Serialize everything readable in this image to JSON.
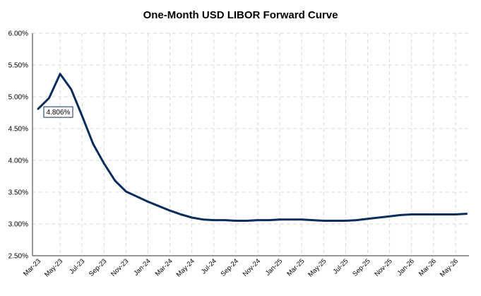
{
  "chart_data": {
    "type": "line",
    "title": "One-Month USD LIBOR Forward Curve",
    "xlabel": "",
    "ylabel": "",
    "ylim": [
      0.025,
      0.06
    ],
    "y_ticks": [
      "2.50%",
      "3.00%",
      "3.50%",
      "4.00%",
      "4.50%",
      "5.00%",
      "5.50%",
      "6.00%"
    ],
    "y_tick_values": [
      0.025,
      0.03,
      0.035,
      0.04,
      0.045,
      0.05,
      0.055,
      0.06
    ],
    "x_tick_labels": [
      "Mar-23",
      "May-23",
      "Jul-23",
      "Sep-23",
      "Nov-23",
      "Jan-24",
      "Mar-24",
      "May-24",
      "Jul-24",
      "Sep-24",
      "Nov-24",
      "Jan-25",
      "Mar-25",
      "May-25",
      "Jul-25",
      "Sep-25",
      "Nov-25",
      "Jan-26",
      "Mar-26",
      "May-26"
    ],
    "grid": true,
    "legend": "none",
    "color": "#0b2d5c",
    "series": [
      {
        "x": [
          "Mar-23",
          "Apr-23",
          "May-23",
          "Jun-23",
          "Jul-23",
          "Aug-23",
          "Sep-23",
          "Oct-23",
          "Nov-23",
          "Dec-23",
          "Jan-24",
          "Feb-24",
          "Mar-24",
          "Apr-24",
          "May-24",
          "Jun-24",
          "Jul-24",
          "Aug-24",
          "Sep-24",
          "Oct-24",
          "Nov-24",
          "Dec-24",
          "Jan-25",
          "Feb-25",
          "Mar-25",
          "Apr-25",
          "May-25",
          "Jun-25",
          "Jul-25",
          "Aug-25",
          "Sep-25",
          "Oct-25",
          "Nov-25",
          "Dec-25",
          "Jan-26",
          "Feb-26",
          "Mar-26",
          "Apr-26",
          "May-26",
          "Jun-26"
        ],
        "values": [
          0.0481,
          0.0498,
          0.0536,
          0.0512,
          0.047,
          0.0426,
          0.0395,
          0.0368,
          0.0351,
          0.0343,
          0.0335,
          0.0328,
          0.0321,
          0.0315,
          0.031,
          0.0307,
          0.0306,
          0.0306,
          0.0305,
          0.0305,
          0.0306,
          0.0306,
          0.0307,
          0.0307,
          0.0307,
          0.0306,
          0.0305,
          0.0305,
          0.0305,
          0.0306,
          0.0308,
          0.031,
          0.0312,
          0.0314,
          0.0315,
          0.0315,
          0.0315,
          0.0315,
          0.0315,
          0.0316
        ]
      }
    ],
    "annotations": [
      {
        "text": "4.806%",
        "x": "Mar-23",
        "y": 0.0481
      }
    ]
  }
}
